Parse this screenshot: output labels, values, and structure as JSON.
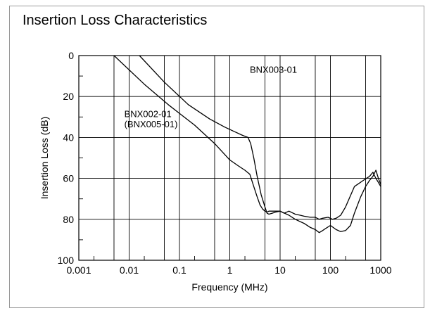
{
  "chart_data": {
    "type": "line",
    "title": "Insertion Loss Characteristics",
    "xlabel": "Frequency (MHz)",
    "ylabel": "Insertion Loss (dB)",
    "xscale": "log",
    "xlim": [
      0.001,
      1000
    ],
    "ylim": [
      0,
      100
    ],
    "y_inverted": true,
    "grid": true,
    "x_ticks": [
      0.001,
      0.01,
      0.1,
      1,
      10,
      100,
      1000
    ],
    "x_tick_labels": [
      "0.001",
      "0.01",
      "0.1",
      "1",
      "10",
      "100",
      "1000"
    ],
    "y_ticks": [
      0,
      20,
      40,
      60,
      80,
      100
    ],
    "y_tick_labels": [
      "0",
      "20",
      "40",
      "60",
      "80",
      "100"
    ],
    "series": [
      {
        "name": "BNX003-01",
        "x": [
          0.016,
          0.05,
          0.15,
          0.4,
          0.8,
          1.2,
          1.8,
          2.3,
          2.6,
          3.0,
          3.5,
          4.2,
          5.0,
          5.5,
          6.0,
          7.0,
          8.0,
          10,
          12,
          15,
          20,
          25,
          30,
          40,
          50,
          60,
          70,
          90,
          110,
          130,
          160,
          200,
          300,
          450,
          600,
          700,
          800,
          900,
          1000
        ],
        "y": [
          0,
          13,
          24,
          31,
          35,
          37,
          39,
          40,
          43,
          50,
          59,
          68,
          74,
          77,
          77.5,
          77,
          76.5,
          76,
          77,
          76,
          77.5,
          78,
          78.5,
          79,
          79,
          80,
          79.5,
          79,
          80,
          79.5,
          78,
          74,
          64,
          61,
          59,
          57,
          60,
          62,
          64
        ]
      },
      {
        "name": "BNX002-01",
        "label_lines": [
          "BNX002-01",
          "(BNX005-01)"
        ],
        "x": [
          0.005,
          0.02,
          0.06,
          0.2,
          0.5,
          1.0,
          1.5,
          2.0,
          2.5,
          3.0,
          3.5,
          4.0,
          4.5,
          5.0,
          5.5,
          6.0,
          7.0,
          8.0,
          10,
          15,
          20,
          30,
          40,
          50,
          60,
          70,
          80,
          100,
          130,
          160,
          200,
          250,
          300,
          400,
          500,
          600,
          700,
          800,
          900,
          1000
        ],
        "y": [
          0,
          14,
          24,
          34,
          43,
          51,
          54,
          56,
          58,
          64,
          69,
          73,
          75,
          76,
          76.5,
          76,
          76,
          76,
          76,
          78,
          80,
          82,
          84,
          85,
          86.5,
          85.5,
          84.5,
          83,
          85,
          86,
          85.5,
          83,
          77,
          69,
          64,
          61,
          59,
          56,
          60,
          63
        ]
      }
    ],
    "annotations": [
      {
        "text": "BNX003-01",
        "x": 2.5,
        "y": 8.5
      },
      {
        "text": "BNX002-01",
        "x": 0.008,
        "y": 30
      },
      {
        "text": "(BNX005-01)",
        "x": 0.008,
        "y": 35
      }
    ]
  }
}
